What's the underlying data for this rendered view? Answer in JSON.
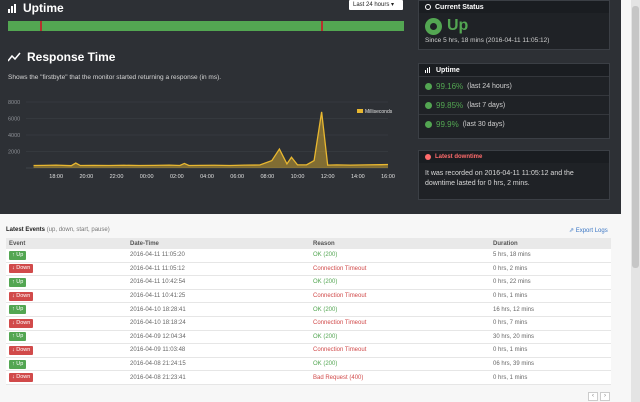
{
  "uptime": {
    "title": "Uptime",
    "range_selected": "Last 24 hours ▾",
    "downtime_markers": [
      0.08,
      0.79
    ]
  },
  "response_time": {
    "title": "Response Time",
    "description": "Shows the \"firstbyte\" that the monitor started returning a response (in ms)."
  },
  "chart_data": {
    "type": "line",
    "title": "",
    "xlabel": "",
    "ylabel": "",
    "y_ticks": [
      "8000",
      "6000",
      "4000",
      "2000"
    ],
    "x_ticks": [
      "18:00",
      "20:00",
      "22:00",
      "00:00",
      "02:00",
      "04:00",
      "06:00",
      "08:00",
      "10:00",
      "12:00",
      "14:00",
      "16:00"
    ],
    "ylim": [
      0,
      8000
    ],
    "series": [
      {
        "name": "Milliseconds",
        "color": "#e8b730",
        "points": [
          [
            16.5,
            300
          ],
          [
            17.2,
            320
          ],
          [
            18.0,
            350
          ],
          [
            19.0,
            280
          ],
          [
            19.3,
            600
          ],
          [
            19.6,
            300
          ],
          [
            20.5,
            320
          ],
          [
            21.5,
            300
          ],
          [
            22.5,
            330
          ],
          [
            23.5,
            300
          ],
          [
            24.5,
            320
          ],
          [
            25.5,
            350
          ],
          [
            26.2,
            300
          ],
          [
            26.5,
            550
          ],
          [
            26.8,
            300
          ],
          [
            27.5,
            320
          ],
          [
            28.5,
            330
          ],
          [
            29.5,
            300
          ],
          [
            30.5,
            350
          ],
          [
            31.5,
            360
          ],
          [
            32.3,
            900
          ],
          [
            32.8,
            2300
          ],
          [
            33.3,
            500
          ],
          [
            33.6,
            1300
          ],
          [
            34.0,
            380
          ],
          [
            34.6,
            380
          ],
          [
            35.1,
            900
          ],
          [
            35.6,
            6800
          ],
          [
            36.0,
            350
          ],
          [
            36.6,
            380
          ],
          [
            37.5,
            350
          ],
          [
            38.5,
            380
          ],
          [
            39.5,
            400
          ],
          [
            40.0,
            420
          ]
        ]
      }
    ],
    "legend": "top-right",
    "grid": true
  },
  "current_status": {
    "title": "Current Status",
    "state": "Up",
    "since": "Since 5 hrs, 18 mins (2016-04-11 11:05:12)"
  },
  "uptime_stats": {
    "title": "Uptime",
    "items": [
      {
        "pct": "99.16%",
        "period": "(last 24 hours)"
      },
      {
        "pct": "99.85%",
        "period": "(last 7 days)"
      },
      {
        "pct": "99.9%",
        "period": "(last 30 days)"
      }
    ]
  },
  "latest_downtime": {
    "title": "Latest downtime",
    "text": "It was recorded on 2016-04-11 11:05:12 and the downtime lasted for 0 hrs, 2 mins."
  },
  "events": {
    "title": "Latest Events",
    "subtitle": "(up, down, start, pause)",
    "export_label": "Export Logs",
    "columns": [
      "Event",
      "Date-Time",
      "Reason",
      "Duration"
    ],
    "rows": [
      {
        "event": "Up",
        "type": "up",
        "datetime": "2016-04-11 11:05:20",
        "reason": "OK (200)",
        "ok": true,
        "duration": "5 hrs, 18 mins"
      },
      {
        "event": "Down",
        "type": "down",
        "datetime": "2016-04-11 11:05:12",
        "reason": "Connection Timeout",
        "ok": false,
        "duration": "0 hrs, 2 mins"
      },
      {
        "event": "Up",
        "type": "up",
        "datetime": "2016-04-11 10:42:54",
        "reason": "OK (200)",
        "ok": true,
        "duration": "0 hrs, 22 mins"
      },
      {
        "event": "Down",
        "type": "down",
        "datetime": "2016-04-11 10:41:25",
        "reason": "Connection Timeout",
        "ok": false,
        "duration": "0 hrs, 1 mins"
      },
      {
        "event": "Up",
        "type": "up",
        "datetime": "2016-04-10 18:28:41",
        "reason": "OK (200)",
        "ok": true,
        "duration": "16 hrs, 12 mins"
      },
      {
        "event": "Down",
        "type": "down",
        "datetime": "2016-04-10 18:18:24",
        "reason": "Connection Timeout",
        "ok": false,
        "duration": "0 hrs, 7 mins"
      },
      {
        "event": "Up",
        "type": "up",
        "datetime": "2016-04-09 12:04:34",
        "reason": "OK (200)",
        "ok": true,
        "duration": "30 hrs, 20 mins"
      },
      {
        "event": "Down",
        "type": "down",
        "datetime": "2016-04-09 11:03:48",
        "reason": "Connection Timeout",
        "ok": false,
        "duration": "0 hrs, 1 mins"
      },
      {
        "event": "Up",
        "type": "up",
        "datetime": "2016-04-08 21:24:15",
        "reason": "OK (200)",
        "ok": true,
        "duration": "06 hrs, 39 mins"
      },
      {
        "event": "Down",
        "type": "down",
        "datetime": "2016-04-08 21:23:41",
        "reason": "Bad Request (400)",
        "ok": false,
        "duration": "0 hrs, 1 mins"
      }
    ]
  },
  "pager": {
    "prev": "‹",
    "next": "›"
  }
}
